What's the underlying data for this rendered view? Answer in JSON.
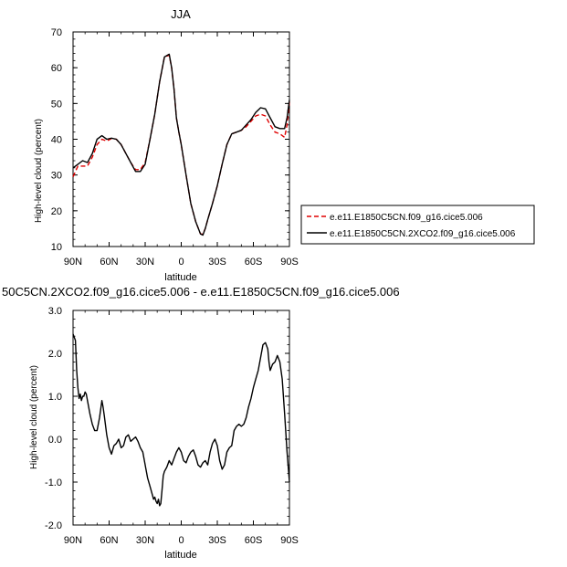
{
  "chart_data": [
    {
      "type": "line",
      "title": "JJA",
      "xlabel": "latitude",
      "ylabel": "High-level cloud (percent)",
      "xlim": [
        90,
        -90
      ],
      "ylim": [
        10,
        70
      ],
      "xticks": [
        {
          "value": 90,
          "label": "90N"
        },
        {
          "value": 60,
          "label": "60N"
        },
        {
          "value": 30,
          "label": "30N"
        },
        {
          "value": 0,
          "label": "0"
        },
        {
          "value": -30,
          "label": "30S"
        },
        {
          "value": -60,
          "label": "60S"
        },
        {
          "value": -90,
          "label": "90S"
        }
      ],
      "yticks": [
        10,
        20,
        30,
        40,
        50,
        60,
        70
      ],
      "legend_position": "right",
      "series": [
        {
          "name": "e.e11.E1850C5CN.f09_g16.cice5.006",
          "color": "#e00000",
          "dash": true,
          "x": [
            90,
            86,
            82,
            78,
            74,
            70,
            66,
            62,
            58,
            54,
            50,
            46,
            42,
            38,
            34,
            30,
            26,
            22,
            18,
            14,
            10,
            8,
            6,
            4,
            2,
            0,
            -4,
            -8,
            -12,
            -16,
            -18,
            -20,
            -22,
            -26,
            -30,
            -34,
            -38,
            -42,
            -46,
            -50,
            -54,
            -58,
            -62,
            -66,
            -70,
            -74,
            -78,
            -82,
            -86,
            -88,
            -90
          ],
          "y": [
            29.5,
            32.5,
            32.5,
            32.5,
            35,
            38.5,
            40,
            39.5,
            40.2,
            40,
            38.5,
            36,
            33.5,
            31.5,
            31.5,
            33.5,
            40,
            47,
            56,
            63,
            63.5,
            60,
            54,
            46,
            42,
            38.5,
            30,
            22,
            17,
            13.5,
            13.5,
            15,
            17.5,
            22,
            27,
            33,
            38.5,
            41.5,
            42,
            42.5,
            43.5,
            45,
            46.5,
            47,
            46.5,
            44,
            42,
            41.5,
            40.5,
            44,
            50.5
          ]
        },
        {
          "name": "e.e11.E1850C5CN.2XCO2.f09_g16.cice5.006",
          "color": "#000000",
          "dash": false,
          "x": [
            90,
            86,
            82,
            78,
            74,
            70,
            66,
            62,
            58,
            54,
            50,
            46,
            42,
            38,
            34,
            30,
            26,
            22,
            18,
            14,
            10,
            8,
            6,
            4,
            2,
            0,
            -4,
            -8,
            -12,
            -16,
            -18,
            -20,
            -22,
            -26,
            -30,
            -34,
            -38,
            -42,
            -46,
            -50,
            -54,
            -58,
            -62,
            -66,
            -70,
            -74,
            -78,
            -82,
            -86,
            -88,
            -90
          ],
          "y": [
            32,
            33,
            34,
            33.5,
            36,
            40,
            41,
            40,
            40.3,
            40,
            38.5,
            36,
            33.5,
            31,
            31,
            33,
            40,
            47,
            56,
            63,
            63.8,
            60,
            54,
            46,
            42,
            38.5,
            30,
            22,
            17,
            13.5,
            13.2,
            15,
            17.5,
            22,
            27,
            33,
            38.5,
            41.5,
            42,
            42.5,
            44,
            45.5,
            47.5,
            48.8,
            48.5,
            46,
            43.5,
            43,
            43,
            46,
            51
          ]
        }
      ]
    },
    {
      "type": "line",
      "title": "50C5CN.2XCO2.f09_g16.cice5.006 - e.e11.E1850C5CN.f09_g16.cice5.006",
      "xlabel": "latitude",
      "ylabel": "High-level cloud (percent)",
      "xlim": [
        90,
        -90
      ],
      "ylim": [
        -2.0,
        3.0
      ],
      "xticks": [
        {
          "value": 90,
          "label": "90N"
        },
        {
          "value": 60,
          "label": "60N"
        },
        {
          "value": 30,
          "label": "30N"
        },
        {
          "value": 0,
          "label": "0"
        },
        {
          "value": -30,
          "label": "30S"
        },
        {
          "value": -60,
          "label": "60S"
        },
        {
          "value": -90,
          "label": "90S"
        }
      ],
      "yticks": [
        {
          "value": -2.0,
          "label": "-2.0"
        },
        {
          "value": -1.0,
          "label": "-1.0"
        },
        {
          "value": 0.0,
          "label": "0.0"
        },
        {
          "value": 1.0,
          "label": "1.0"
        },
        {
          "value": 2.0,
          "label": "2.0"
        },
        {
          "value": 3.0,
          "label": "3.0"
        }
      ],
      "series": [
        {
          "color": "#000000",
          "dash": false,
          "x": [
            90,
            88,
            87,
            86,
            85,
            84,
            83,
            82,
            81,
            80,
            79,
            78,
            76,
            74,
            72,
            70,
            68,
            66,
            65,
            64,
            62,
            60,
            58,
            56,
            54,
            52,
            50,
            48,
            46,
            44,
            42,
            40,
            38,
            36,
            34,
            32,
            30,
            28,
            26,
            24,
            23,
            22,
            21,
            20,
            19,
            18,
            17,
            16,
            15,
            14,
            12,
            10,
            8,
            6,
            4,
            2,
            0,
            -2,
            -4,
            -6,
            -8,
            -10,
            -12,
            -14,
            -16,
            -18,
            -20,
            -22,
            -24,
            -26,
            -28,
            -30,
            -32,
            -34,
            -36,
            -38,
            -40,
            -42,
            -44,
            -46,
            -48,
            -50,
            -52,
            -54,
            -56,
            -58,
            -60,
            -62,
            -64,
            -66,
            -68,
            -70,
            -72,
            -73,
            -74,
            -76,
            -78,
            -80,
            -82,
            -84,
            -86,
            -88,
            -90
          ],
          "y": [
            2.45,
            2.3,
            1.6,
            1.2,
            0.95,
            1.05,
            0.9,
            1.0,
            1.0,
            1.1,
            1.05,
            0.9,
            0.6,
            0.35,
            0.2,
            0.2,
            0.5,
            0.9,
            0.75,
            0.55,
            0.1,
            -0.2,
            -0.35,
            -0.15,
            -0.1,
            0.0,
            -0.2,
            -0.15,
            0.05,
            0.1,
            -0.05,
            0.0,
            0.05,
            -0.05,
            -0.2,
            -0.3,
            -0.6,
            -0.9,
            -1.1,
            -1.3,
            -1.4,
            -1.35,
            -1.45,
            -1.5,
            -1.4,
            -1.55,
            -1.5,
            -1.2,
            -0.85,
            -0.75,
            -0.65,
            -0.5,
            -0.6,
            -0.45,
            -0.3,
            -0.2,
            -0.3,
            -0.5,
            -0.55,
            -0.4,
            -0.3,
            -0.25,
            -0.4,
            -0.6,
            -0.65,
            -0.55,
            -0.5,
            -0.6,
            -0.3,
            -0.1,
            0.0,
            -0.15,
            -0.5,
            -0.7,
            -0.6,
            -0.3,
            -0.2,
            -0.15,
            0.2,
            0.3,
            0.35,
            0.3,
            0.35,
            0.5,
            0.75,
            0.95,
            1.2,
            1.4,
            1.6,
            1.9,
            2.2,
            2.25,
            2.1,
            1.8,
            1.6,
            1.75,
            1.8,
            1.95,
            1.8,
            1.4,
            0.6,
            -0.3,
            -1.0
          ]
        }
      ]
    }
  ]
}
